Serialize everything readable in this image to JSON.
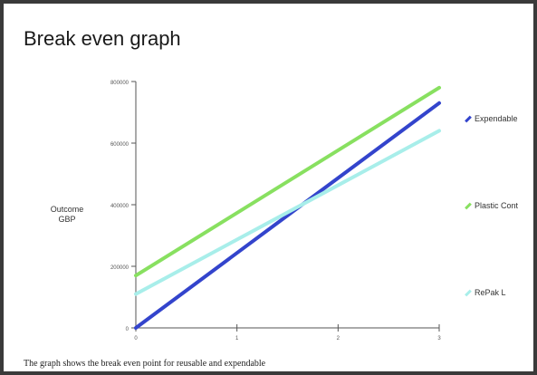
{
  "page": {
    "title": "Break even graph",
    "caption": "The graph shows the break even point for reusable and expendable"
  },
  "chart_data": {
    "type": "line",
    "title": "Break even graph",
    "xlabel": "",
    "ylabel_lines": [
      "Outcome",
      "GBP"
    ],
    "x_ticks": [
      "0",
      "1",
      "2",
      "3"
    ],
    "y_ticks": [
      "0",
      "200000",
      "400000",
      "600000",
      "800000"
    ],
    "xlim": [
      0,
      3
    ],
    "ylim": [
      0,
      800000
    ],
    "grid": false,
    "legend_placement": "right",
    "series": [
      {
        "name": "Expendable",
        "color": "#3344cc",
        "x": [
          0,
          3
        ],
        "y": [
          0,
          730000
        ]
      },
      {
        "name": "Plastic Cont",
        "color": "#88e060",
        "x": [
          0,
          3
        ],
        "y": [
          170000,
          780000
        ]
      },
      {
        "name": "RePak L",
        "color": "#a8eeea",
        "x": [
          0,
          3
        ],
        "y": [
          110000,
          640000
        ]
      }
    ]
  }
}
